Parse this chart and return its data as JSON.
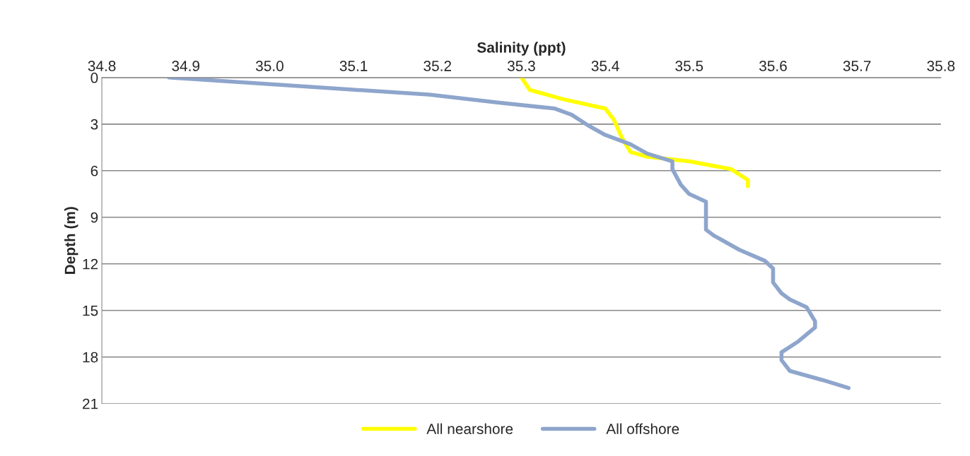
{
  "chart_data": {
    "type": "line",
    "xlabel": "Salinity (ppt)",
    "ylabel": "Depth (m)",
    "xlim": [
      34.8,
      35.8
    ],
    "xticks": [
      {
        "value": 34.8,
        "label": "34.8"
      },
      {
        "value": 34.9,
        "label": "34.9"
      },
      {
        "value": 35.0,
        "label": "35.0"
      },
      {
        "value": 35.1,
        "label": "35.1"
      },
      {
        "value": 35.2,
        "label": "35.2"
      },
      {
        "value": 35.3,
        "label": "35.3"
      },
      {
        "value": 35.4,
        "label": "35.4"
      },
      {
        "value": 35.5,
        "label": "35.5"
      },
      {
        "value": 35.6,
        "label": "35.6"
      },
      {
        "value": 35.7,
        "label": "35.7"
      },
      {
        "value": 35.8,
        "label": "35.8"
      }
    ],
    "ylim": [
      21,
      0
    ],
    "yticks": [
      0,
      3,
      6,
      9,
      12,
      15,
      18,
      21
    ],
    "grid": "y",
    "legend": "bottom",
    "marker": "none",
    "line_style": "solid",
    "series": [
      {
        "name": "All nearshore",
        "color": "#ffff00",
        "x": [
          35.3,
          35.31,
          35.35,
          35.4,
          35.41,
          35.42,
          35.43,
          35.45,
          35.5,
          35.55,
          35.57,
          35.57
        ],
        "values": [
          0,
          0.8,
          1.4,
          2.0,
          2.7,
          3.9,
          4.8,
          5.1,
          5.4,
          5.9,
          6.6,
          7.0
        ]
      },
      {
        "name": "All offshore",
        "color": "#8ea5cc",
        "x": [
          34.88,
          35.02,
          35.19,
          35.27,
          35.34,
          35.36,
          35.38,
          35.4,
          35.43,
          35.45,
          35.48,
          35.48,
          35.49,
          35.5,
          35.52,
          35.52,
          35.52,
          35.53,
          35.56,
          35.59,
          35.6,
          35.6,
          35.61,
          35.62,
          35.64,
          35.65,
          35.65,
          35.63,
          35.61,
          35.61,
          35.62,
          35.66,
          35.69
        ],
        "values": [
          0,
          0.5,
          1.1,
          1.6,
          2.0,
          2.4,
          3.1,
          3.7,
          4.3,
          4.9,
          5.4,
          5.9,
          6.9,
          7.5,
          8.0,
          8.6,
          9.8,
          10.2,
          11.1,
          11.8,
          12.3,
          13.2,
          13.9,
          14.3,
          14.8,
          15.7,
          16.1,
          17.0,
          17.7,
          18.2,
          18.9,
          19.5,
          20.0
        ]
      }
    ]
  }
}
